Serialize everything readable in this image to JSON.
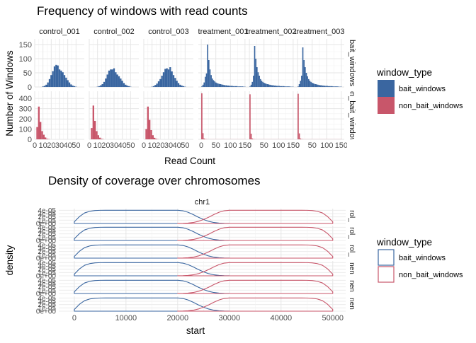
{
  "chart_data": [
    {
      "type": "bar",
      "title": "Frequency of windows with read counts",
      "xlabel": "Read Count",
      "ylabel": "Number of Windows",
      "facet_columns": [
        "control_001",
        "control_002",
        "control_003",
        "treatment_001",
        "treatment_002",
        "treatment_003"
      ],
      "facet_rows": [
        "bait_windows",
        "non_bait_windows"
      ],
      "row_ylim": [
        [
          0,
          170
        ],
        [
          0,
          470
        ]
      ],
      "row_yticks": [
        [
          0,
          50,
          100,
          150
        ],
        [
          0,
          100,
          200,
          300,
          400
        ]
      ],
      "col_xlim": [
        [
          0,
          60
        ],
        [
          0,
          60
        ],
        [
          0,
          60
        ],
        [
          -10,
          160
        ],
        [
          -10,
          160
        ],
        [
          -10,
          160
        ]
      ],
      "col_xticks": [
        [
          0,
          10,
          20,
          30,
          40,
          50
        ],
        [
          0,
          10,
          20,
          30,
          40,
          50
        ],
        [
          0,
          10,
          20,
          30,
          40,
          50
        ],
        [
          0,
          50,
          100,
          150
        ],
        [
          0,
          50,
          100,
          150
        ],
        [
          0,
          50,
          100,
          150
        ]
      ],
      "bins": [
        [
          {
            "x": [
              10,
              12,
              14,
              16,
              18,
              20,
              22,
              24,
              26,
              28,
              30,
              32,
              34,
              36,
              38,
              40,
              42,
              44,
              46,
              48,
              50
            ],
            "values": [
              2,
              4,
              8,
              16,
              28,
              42,
              56,
              73,
              78,
              76,
              62,
              58,
              52,
              42,
              33,
              24,
              16,
              9,
              5,
              3,
              1
            ]
          },
          {
            "x": [
              3,
              5,
              7,
              9,
              11,
              13,
              15,
              17
            ],
            "values": [
              120,
              320,
              170,
              80,
              45,
              18,
              6,
              3
            ]
          }
        ],
        [
          {
            "x": [
              10,
              12,
              14,
              16,
              18,
              20,
              22,
              24,
              26,
              28,
              30,
              32,
              34,
              36,
              38,
              40,
              42,
              44,
              46,
              48,
              50
            ],
            "values": [
              1,
              3,
              6,
              10,
              18,
              30,
              44,
              58,
              62,
              62,
              66,
              52,
              44,
              38,
              30,
              22,
              14,
              8,
              5,
              3,
              1
            ]
          },
          {
            "x": [
              3,
              5,
              7,
              9,
              11,
              13,
              15,
              17
            ],
            "values": [
              110,
              330,
              180,
              80,
              40,
              16,
              6,
              2
            ]
          }
        ],
        [
          {
            "x": [
              10,
              12,
              14,
              16,
              18,
              20,
              22,
              24,
              26,
              28,
              30,
              32,
              34,
              36,
              38,
              40,
              42,
              44,
              46,
              48,
              50
            ],
            "values": [
              1,
              3,
              7,
              12,
              20,
              28,
              40,
              52,
              64,
              66,
              62,
              70,
              55,
              42,
              32,
              22,
              14,
              8,
              5,
              3,
              1
            ]
          },
          {
            "x": [
              3,
              5,
              7,
              9,
              11,
              13,
              15,
              17
            ],
            "values": [
              100,
              320,
              190,
              90,
              40,
              15,
              6,
              2
            ]
          }
        ],
        [
          {
            "x": [
              2,
              6,
              10,
              14,
              18,
              22,
              26,
              30,
              34,
              38,
              42,
              46,
              50,
              54,
              58,
              62,
              66,
              70,
              74,
              78,
              82,
              86,
              90,
              94,
              98,
              102,
              106,
              110,
              114,
              118,
              122,
              126,
              130,
              134,
              138,
              142,
              146,
              150
            ],
            "values": [
              2,
              8,
              16,
              36,
              48,
              150,
              95,
              62,
              42,
              30,
              24,
              20,
              16,
              14,
              12,
              11,
              10,
              9,
              8,
              7,
              6,
              6,
              5,
              5,
              4,
              4,
              4,
              3,
              3,
              3,
              3,
              2,
              2,
              2,
              2,
              2,
              1,
              1
            ]
          },
          {
            "x": [
              2,
              6,
              10,
              14,
              18,
              22,
              26,
              30,
              34,
              38,
              42,
              46,
              50,
              54,
              58,
              62,
              66,
              70,
              74,
              78,
              82,
              86,
              90,
              94,
              98,
              102,
              106,
              110,
              114,
              118,
              122,
              126,
              130,
              134,
              138,
              142,
              146,
              150
            ],
            "values": [
              450,
              60,
              8,
              3,
              2,
              1,
              1,
              1,
              1,
              1,
              1,
              1,
              1,
              1,
              1,
              1,
              1,
              1,
              1,
              1,
              1,
              1,
              1,
              1,
              1,
              1,
              1,
              1,
              1,
              1,
              1,
              1,
              1,
              1,
              1,
              1,
              1,
              1
            ]
          }
        ],
        [
          {
            "x": [
              2,
              6,
              10,
              14,
              18,
              22,
              26,
              30,
              34,
              38,
              42,
              46,
              50,
              54,
              58,
              62,
              66,
              70,
              74,
              78,
              82,
              86,
              90,
              94,
              98,
              102,
              106,
              110,
              114,
              118,
              122,
              126,
              130,
              134,
              138,
              142,
              146,
              150
            ],
            "values": [
              2,
              8,
              18,
              40,
              145,
              100,
              70,
              52,
              40,
              28,
              22,
              18,
              15,
              13,
              11,
              10,
              9,
              8,
              7,
              6,
              6,
              5,
              5,
              4,
              4,
              4,
              3,
              3,
              3,
              3,
              2,
              2,
              2,
              2,
              2,
              1,
              1,
              1
            ]
          },
          {
            "x": [
              2,
              6,
              10,
              14,
              18,
              22,
              26,
              30,
              34,
              38,
              42,
              46,
              50,
              54,
              58,
              62,
              66,
              70,
              74,
              78,
              82,
              86,
              90,
              94,
              98,
              102,
              106,
              110,
              114,
              118,
              122,
              126,
              130,
              134,
              138,
              142,
              146,
              150
            ],
            "values": [
              440,
              55,
              8,
              3,
              2,
              1,
              1,
              1,
              1,
              1,
              1,
              1,
              1,
              1,
              1,
              1,
              1,
              1,
              1,
              1,
              1,
              1,
              1,
              1,
              1,
              1,
              1,
              1,
              1,
              1,
              1,
              1,
              1,
              1,
              1,
              1,
              1,
              1
            ]
          }
        ],
        [
          {
            "x": [
              2,
              6,
              10,
              14,
              18,
              22,
              26,
              30,
              34,
              38,
              42,
              46,
              50,
              54,
              58,
              62,
              66,
              70,
              74,
              78,
              82,
              86,
              90,
              94,
              98,
              102,
              106,
              110,
              114,
              118,
              122,
              126,
              130,
              134,
              138,
              142,
              146,
              150
            ],
            "values": [
              2,
              10,
              22,
              40,
              140,
              95,
              70,
              50,
              38,
              28,
              22,
              18,
              15,
              13,
              11,
              10,
              9,
              8,
              7,
              6,
              6,
              5,
              5,
              4,
              4,
              4,
              3,
              3,
              3,
              3,
              2,
              2,
              2,
              2,
              2,
              1,
              1,
              1
            ]
          },
          {
            "x": [
              2,
              6,
              10,
              14,
              18,
              22,
              26,
              30,
              34,
              38,
              42,
              46,
              50,
              54,
              58,
              62,
              66,
              70,
              74,
              78,
              82,
              86,
              90,
              94,
              98,
              102,
              106,
              110,
              114,
              118,
              122,
              126,
              130,
              134,
              138,
              142,
              146,
              150
            ],
            "values": [
              445,
              58,
              8,
              3,
              2,
              1,
              1,
              1,
              1,
              1,
              1,
              1,
              1,
              1,
              1,
              1,
              1,
              1,
              1,
              1,
              1,
              1,
              1,
              1,
              1,
              1,
              1,
              1,
              1,
              1,
              1,
              1,
              1,
              1,
              1,
              1,
              1,
              1
            ]
          }
        ]
      ],
      "legend": {
        "title": "window_type",
        "entries": [
          "bait_windows",
          "non_bait_windows"
        ],
        "position": "right"
      },
      "colors": {
        "bait_windows": "#3a66a0",
        "non_bait_windows": "#c8566a"
      },
      "grid": true
    },
    {
      "type": "area",
      "title": "Density of coverage over chromosomes",
      "xlabel": "start",
      "ylabel": "density",
      "facet_column": "chr1",
      "facet_row_labels": [
        "rol_",
        "rol_",
        "rol_",
        "nen",
        "nen",
        "nen"
      ],
      "xlim": [
        -3000,
        52500
      ],
      "xticks": [
        0,
        10000,
        20000,
        30000,
        40000,
        50000
      ],
      "ylim": [
        0,
        4.5e-05
      ],
      "yticks": [
        "0e+00",
        "1e-05",
        "2e-05",
        "3e-05",
        "4e-05"
      ],
      "series": [
        {
          "name": "bait_windows",
          "x": [
            0,
            1000,
            2000,
            3000,
            4000,
            5000,
            6000,
            20000,
            21000,
            22000,
            23000,
            24000,
            25000,
            26000,
            27000,
            28000,
            29000,
            30000
          ],
          "values": [
            5e-06,
            2.1e-05,
            3.2e-05,
            3.7e-05,
            3.92e-05,
            3.99e-05,
            4e-05,
            4e-05,
            3.85e-05,
            3.4e-05,
            2.7e-05,
            1.9e-05,
            1.2e-05,
            6.5e-06,
            3e-06,
            1.2e-06,
            4e-07,
            1e-07
          ]
        },
        {
          "name": "non_bait_windows",
          "x": [
            20000,
            21000,
            22000,
            23000,
            24000,
            25000,
            26000,
            27000,
            28000,
            29000,
            30000,
            44000,
            45000,
            46000,
            47000,
            48000,
            49000,
            50000
          ],
          "values": [
            1e-07,
            4e-07,
            1.2e-06,
            3e-06,
            6.5e-06,
            1.2e-05,
            1.9e-05,
            2.7e-05,
            3.4e-05,
            3.85e-05,
            4e-05,
            4e-05,
            3.99e-05,
            3.92e-05,
            3.7e-05,
            3.2e-05,
            2.1e-05,
            5e-06
          ]
        }
      ],
      "legend": {
        "title": "window_type",
        "entries": [
          "bait_windows",
          "non_bait_windows"
        ],
        "position": "right"
      },
      "colors": {
        "bait_windows": "#3a66a0",
        "non_bait_windows": "#c8566a"
      },
      "grid": true
    }
  ]
}
